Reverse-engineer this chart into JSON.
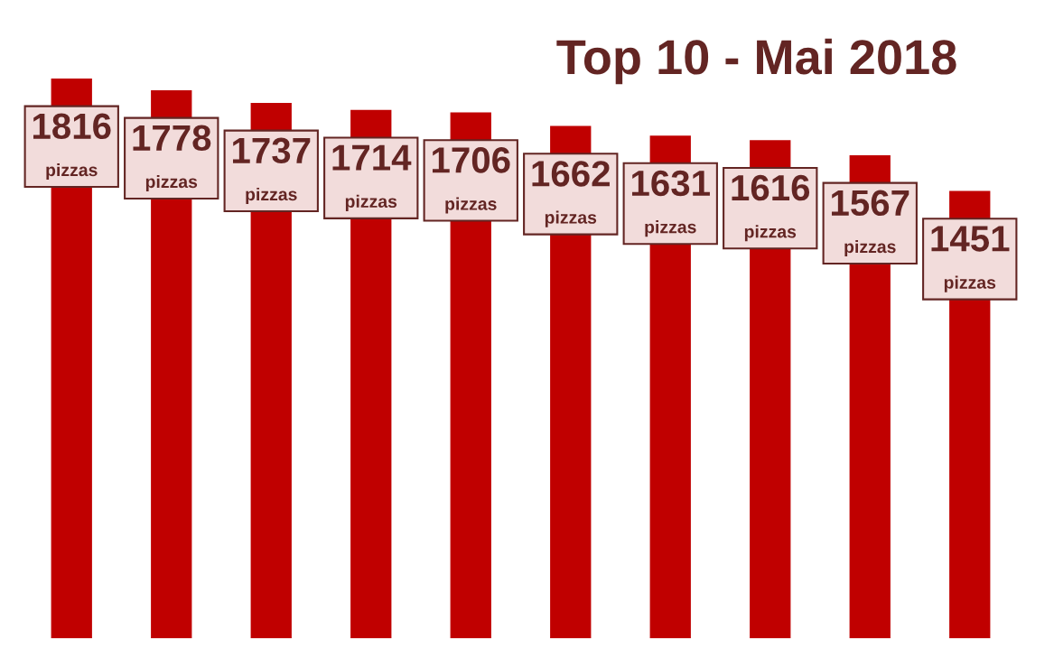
{
  "chart_data": {
    "type": "bar",
    "title": "Top 10 - Mai 2018",
    "categories": [
      null,
      null,
      null,
      null,
      null,
      null,
      null,
      null,
      null,
      null
    ],
    "values": [
      1816,
      1778,
      1737,
      1714,
      1706,
      1662,
      1631,
      1616,
      1567,
      1451
    ],
    "color": "#c00000",
    "data_labels": true,
    "annotations": [
      "pizzas",
      "pizzas",
      "pizzas",
      "pizzas",
      "pizzas",
      "pizzas",
      "pizzas",
      "pizzas",
      "pizzas",
      "pizzas"
    ]
  }
}
